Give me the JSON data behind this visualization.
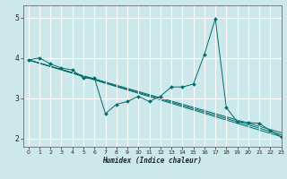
{
  "background_color": "#cce8ea",
  "grid_color": "#ffffff",
  "line_color": "#006b6b",
  "xlabel": "Humidex (Indice chaleur)",
  "xlim": [
    -0.5,
    23
  ],
  "ylim": [
    1.8,
    5.3
  ],
  "yticks": [
    2,
    3,
    4,
    5
  ],
  "xticks": [
    0,
    1,
    2,
    3,
    4,
    5,
    6,
    7,
    8,
    9,
    10,
    11,
    12,
    13,
    14,
    15,
    16,
    17,
    18,
    19,
    20,
    21,
    22,
    23
  ],
  "series": [
    {
      "x": [
        0,
        1,
        2,
        3,
        4,
        5,
        6,
        7,
        8,
        9,
        10,
        11,
        12,
        13,
        14,
        15,
        16,
        17,
        18,
        19,
        20,
        21,
        22,
        23
      ],
      "y": [
        3.95,
        4.0,
        3.85,
        3.75,
        3.7,
        3.5,
        3.5,
        2.62,
        2.85,
        2.92,
        3.05,
        2.92,
        3.05,
        3.28,
        3.28,
        3.35,
        4.08,
        4.97,
        2.77,
        2.42,
        2.4,
        2.38,
        2.2,
        2.05
      ]
    },
    {
      "x": [
        0,
        23
      ],
      "y": [
        3.95,
        2.05
      ]
    },
    {
      "x": [
        0,
        23
      ],
      "y": [
        3.95,
        2.1
      ]
    },
    {
      "x": [
        0,
        23
      ],
      "y": [
        3.95,
        2.15
      ]
    }
  ]
}
